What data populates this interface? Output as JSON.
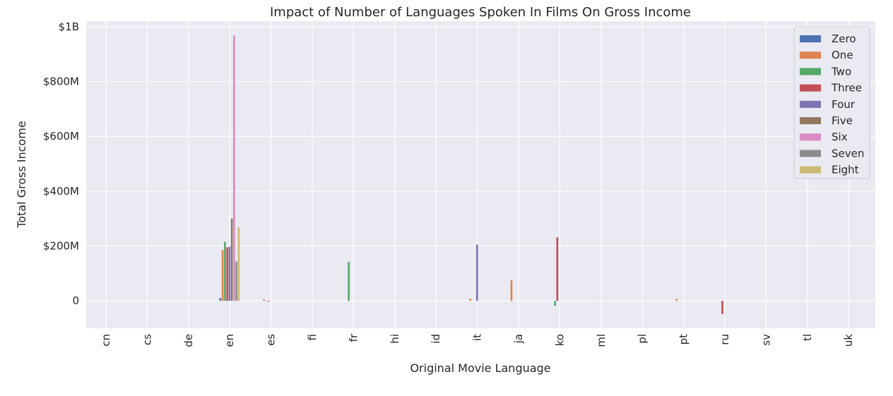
{
  "chart_data": {
    "type": "bar",
    "title": "Impact of Number of Languages Spoken In Films On Gross Income",
    "xlabel": "Original Movie Language",
    "ylabel": "Total Gross Income",
    "ylim": [
      -100000000,
      1020000000
    ],
    "yticks": [
      {
        "value": 0,
        "label": "0"
      },
      {
        "value": 200000000,
        "label": "$200M"
      },
      {
        "value": 400000000,
        "label": "$400M"
      },
      {
        "value": 600000000,
        "label": "$600M"
      },
      {
        "value": 800000000,
        "label": "$800M"
      },
      {
        "value": 1000000000,
        "label": "$1B"
      }
    ],
    "categories": [
      "cn",
      "cs",
      "de",
      "en",
      "es",
      "fi",
      "fr",
      "hi",
      "id",
      "it",
      "ja",
      "ko",
      "ml",
      "pl",
      "pt",
      "ru",
      "sv",
      "tl",
      "uk"
    ],
    "grid": true,
    "legend_position": "top-right",
    "series": [
      {
        "name": "Zero",
        "color": "#4c72b0",
        "values": [
          0,
          0,
          0,
          10000000,
          0,
          0,
          0,
          0,
          0,
          0,
          0,
          0,
          0,
          0,
          0,
          0,
          0,
          0,
          0
        ]
      },
      {
        "name": "One",
        "color": "#dd8452",
        "values": [
          0,
          0,
          0,
          185000000,
          5000000,
          0,
          0,
          0,
          0,
          8000000,
          75000000,
          0,
          0,
          0,
          7000000,
          0,
          0,
          0,
          0
        ]
      },
      {
        "name": "Two",
        "color": "#55a868",
        "values": [
          0,
          0,
          0,
          215000000,
          0,
          0,
          142000000,
          0,
          0,
          0,
          0,
          -18000000,
          0,
          0,
          0,
          0,
          0,
          0,
          0
        ]
      },
      {
        "name": "Three",
        "color": "#c44e52",
        "values": [
          0,
          0,
          0,
          195000000,
          -3000000,
          0,
          0,
          0,
          0,
          0,
          0,
          232000000,
          0,
          0,
          0,
          -48000000,
          0,
          0,
          0
        ]
      },
      {
        "name": "Four",
        "color": "#8172b3",
        "values": [
          0,
          0,
          0,
          197000000,
          0,
          0,
          0,
          0,
          0,
          205000000,
          0,
          0,
          0,
          0,
          0,
          0,
          0,
          0,
          0
        ]
      },
      {
        "name": "Five",
        "color": "#937860",
        "values": [
          0,
          0,
          0,
          300000000,
          0,
          0,
          0,
          0,
          0,
          0,
          0,
          0,
          0,
          0,
          0,
          0,
          0,
          0,
          0
        ]
      },
      {
        "name": "Six",
        "color": "#da8bc3",
        "values": [
          0,
          0,
          0,
          968000000,
          0,
          0,
          0,
          0,
          0,
          0,
          0,
          0,
          0,
          0,
          0,
          0,
          0,
          0,
          0
        ]
      },
      {
        "name": "Seven",
        "color": "#8c8c8c",
        "values": [
          0,
          0,
          0,
          143000000,
          0,
          0,
          0,
          0,
          0,
          0,
          0,
          0,
          0,
          0,
          0,
          0,
          0,
          0,
          0
        ]
      },
      {
        "name": "Eight",
        "color": "#ccb974",
        "values": [
          0,
          0,
          0,
          268000000,
          0,
          0,
          0,
          0,
          0,
          0,
          0,
          0,
          0,
          0,
          0,
          0,
          0,
          0,
          0
        ]
      }
    ]
  }
}
